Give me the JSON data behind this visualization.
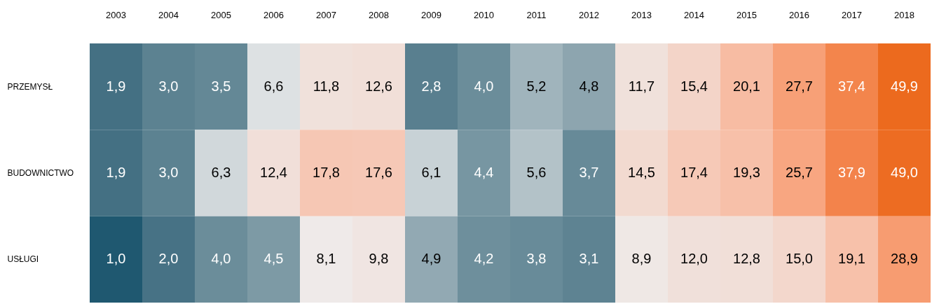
{
  "chart_data": {
    "type": "heatmap",
    "categories": [
      "2003",
      "2004",
      "2005",
      "2006",
      "2007",
      "2008",
      "2009",
      "2010",
      "2011",
      "2012",
      "2013",
      "2014",
      "2015",
      "2016",
      "2017",
      "2018"
    ],
    "y_categories": [
      "PRZEMYSŁ",
      "BUDOWNICTWO",
      "USŁUGI"
    ],
    "cells": [
      [
        1.9,
        3.0,
        3.5,
        6.6,
        11.8,
        12.6,
        2.8,
        4.0,
        5.2,
        4.8,
        11.7,
        15.4,
        20.1,
        27.7,
        37.4,
        49.9
      ],
      [
        1.9,
        3.0,
        6.3,
        12.4,
        17.8,
        17.6,
        6.1,
        4.4,
        5.6,
        3.7,
        14.5,
        17.4,
        19.3,
        25.7,
        37.9,
        49.0
      ],
      [
        1.0,
        2.0,
        4.0,
        4.5,
        8.1,
        9.8,
        4.9,
        4.2,
        3.8,
        3.1,
        8.9,
        12.0,
        12.8,
        15.0,
        19.1,
        28.9
      ]
    ],
    "cell_labels": [
      [
        "1,9",
        "3,0",
        "3,5",
        "6,6",
        "11,8",
        "12,6",
        "2,8",
        "4,0",
        "5,2",
        "4,8",
        "11,7",
        "15,4",
        "20,1",
        "27,7",
        "37,4",
        "49,9"
      ],
      [
        "1,9",
        "3,0",
        "6,3",
        "12,4",
        "17,8",
        "17,6",
        "6,1",
        "4,4",
        "5,6",
        "3,7",
        "14,5",
        "17,4",
        "19,3",
        "25,7",
        "37,9",
        "49,0"
      ],
      [
        "1,0",
        "2,0",
        "4,0",
        "4,5",
        "8,1",
        "9,8",
        "4,9",
        "4,2",
        "3,8",
        "3,1",
        "8,9",
        "12,0",
        "12,8",
        "15,0",
        "19,1",
        "28,9"
      ]
    ]
  }
}
